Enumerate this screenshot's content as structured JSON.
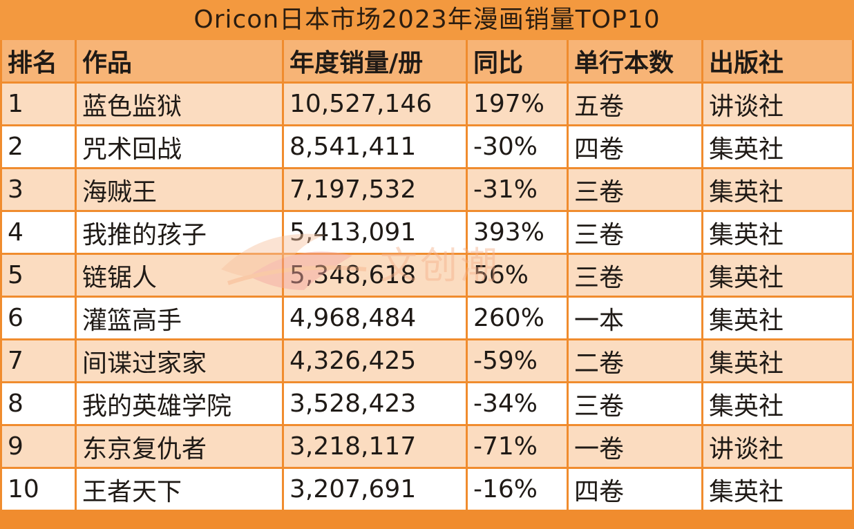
{
  "title": "Oricon日本市场2023年漫画销量TOP10",
  "watermark_text": "文创潮",
  "colors": {
    "header_orange": "#f3993f",
    "border_orange": "#f08c2e",
    "row_tint": "#fbdcc0"
  },
  "chart_data": {
    "type": "table",
    "title": "Oricon日本市场2023年漫画销量TOP10",
    "columns": [
      "排名",
      "作品",
      "年度销量/册",
      "同比",
      "单行本数",
      "出版社"
    ],
    "rows": [
      [
        "1",
        "蓝色监狱",
        "10,527,146",
        "197%",
        "五卷",
        "讲谈社"
      ],
      [
        "2",
        "咒术回战",
        "8,541,411",
        "-30%",
        "四卷",
        "集英社"
      ],
      [
        "3",
        "海贼王",
        "7,197,532",
        "-31%",
        "三卷",
        "集英社"
      ],
      [
        "4",
        "我推的孩子",
        "5,413,091",
        "393%",
        "三卷",
        "集英社"
      ],
      [
        "5",
        "链锯人",
        "5,348,618",
        "56%",
        "三卷",
        "集英社"
      ],
      [
        "6",
        "灌篮高手",
        "4,968,484",
        "260%",
        "一本",
        "集英社"
      ],
      [
        "7",
        "间谍过家家",
        "4,326,425",
        "-59%",
        "二卷",
        "集英社"
      ],
      [
        "8",
        "我的英雄学院",
        "3,528,423",
        "-34%",
        "三卷",
        "集英社"
      ],
      [
        "9",
        "东京复仇者",
        "3,218,117",
        "-71%",
        "一卷",
        "讲谈社"
      ],
      [
        "10",
        "王者天下",
        "3,207,691",
        "-16%",
        "四卷",
        "集英社"
      ]
    ]
  }
}
